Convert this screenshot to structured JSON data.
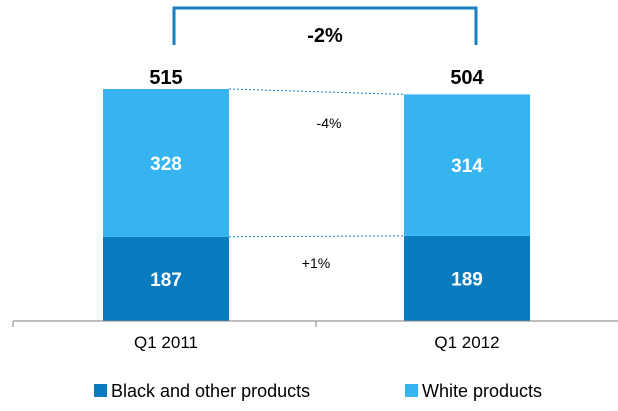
{
  "chart_data": {
    "type": "bar",
    "stacked": true,
    "categories": [
      "Q1 2011",
      "Q1 2012"
    ],
    "series": [
      {
        "name": "Black and other products",
        "values": [
          187,
          189
        ],
        "color": "#0a7bbf"
      },
      {
        "name": "White products",
        "values": [
          328,
          314
        ],
        "color": "#35b4f0"
      }
    ],
    "totals": [
      "515",
      "504"
    ],
    "value_labels": {
      "black": [
        "187",
        "189"
      ],
      "white": [
        "328",
        "314"
      ]
    },
    "changes": {
      "total": "-2%",
      "white": "-4%",
      "black": "+1%"
    },
    "ylim": [
      0,
      515
    ],
    "legend_position": "bottom",
    "grid": false,
    "connector_color": "#1a7fc1"
  }
}
